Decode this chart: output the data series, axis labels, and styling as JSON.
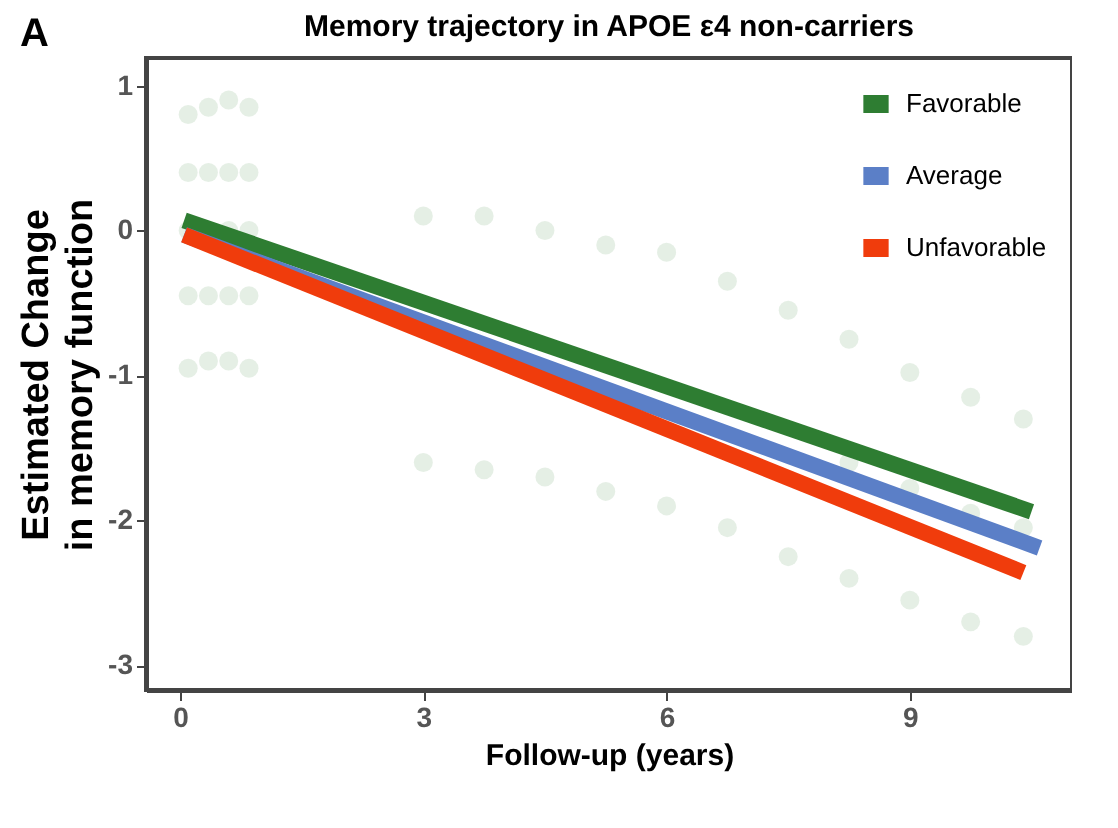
{
  "chart_data": {
    "type": "line",
    "title": "Memory trajectory in APOE ε4 non-carriers",
    "xlabel": "Follow-up (years)",
    "ylabel": "Estimated Change in memory function",
    "annotations": [
      "A"
    ],
    "xlim": [
      -0.42,
      11
    ],
    "xticks": [
      0,
      3,
      6,
      9
    ],
    "ylim": [
      -3.17,
      1.19
    ],
    "yticks": [
      -3,
      -2,
      -1,
      0,
      1
    ],
    "grid": false,
    "legend": "top right",
    "line_style": "solid",
    "series": [
      {
        "type": "scatter",
        "color": "#a8cba9",
        "x": [
          0.1,
          0.1,
          0.1,
          0.1,
          0.1,
          0.35,
          0.35,
          0.35,
          0.35,
          0.6,
          0.6,
          0.6,
          0.6,
          0.6,
          0.85,
          0.85,
          0.85,
          0.85,
          0.85,
          3,
          3,
          3.75,
          3.75,
          4.5,
          4.5,
          5.25,
          5.25,
          6,
          6,
          6.75,
          6.75,
          7.5,
          7.5,
          8.25,
          8.25,
          8.25,
          9,
          9,
          9,
          9.75,
          9.75,
          9.75,
          10.4,
          10.4,
          10.4
        ],
        "values": [
          0.8,
          0.4,
          0,
          -0.45,
          -0.95,
          0.85,
          0.4,
          -0.45,
          -0.9,
          0.9,
          0.4,
          0,
          -0.45,
          -0.9,
          0.85,
          0.4,
          0,
          -0.45,
          -0.95,
          0.1,
          -1.6,
          0.1,
          -1.65,
          0,
          -1.7,
          -0.1,
          -1.8,
          -0.15,
          -1.9,
          -0.35,
          -2.05,
          -0.55,
          -2.25,
          -0.75,
          -1.6,
          -2.4,
          -0.98,
          -1.78,
          -2.55,
          -1.15,
          -1.95,
          -2.7,
          -1.3,
          -2.05,
          -2.8
        ]
      },
      {
        "name": "Favorable",
        "color": "#2e7d32",
        "x": [
          0.05,
          10.5
        ],
        "values": [
          0.07,
          -1.94
        ]
      },
      {
        "name": "Average",
        "color": "#5b7fc7",
        "x": [
          0.05,
          10.6
        ],
        "values": [
          -0.03,
          -2.19
        ]
      },
      {
        "name": "Unfavorable",
        "color": "#f03c0c",
        "x": [
          0.05,
          10.4
        ],
        "values": [
          -0.03,
          -2.36
        ]
      }
    ]
  }
}
